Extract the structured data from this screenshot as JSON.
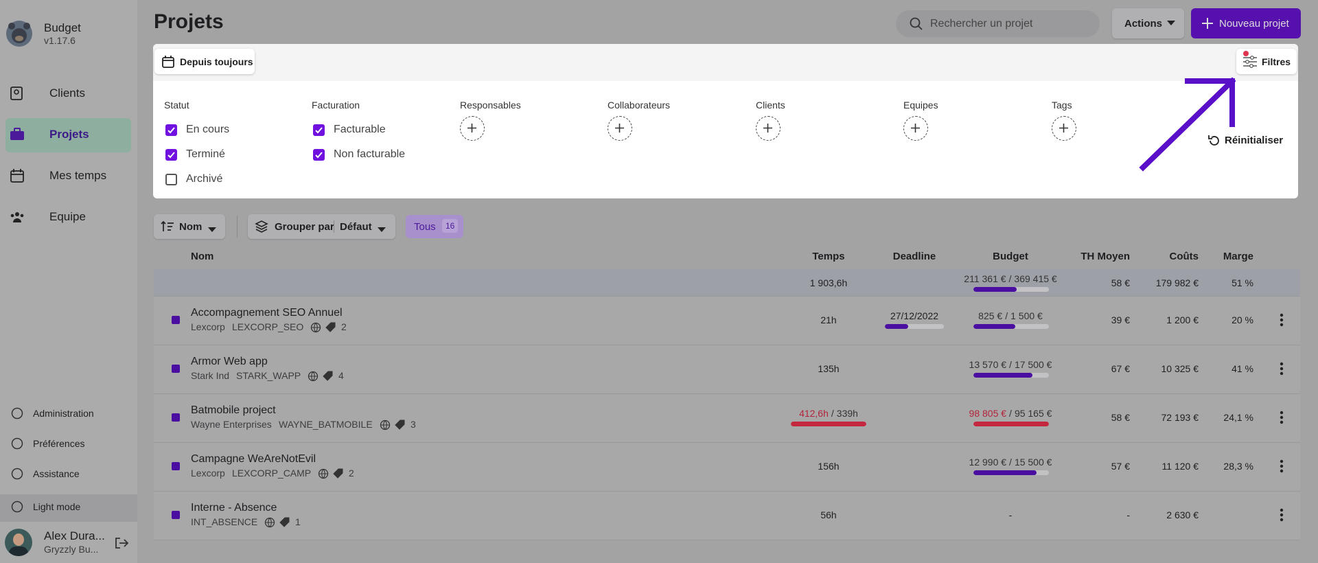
{
  "sidebar": {
    "app_name": "Budget",
    "version": "v1.17.6",
    "nav": [
      "Clients",
      "Projets",
      "Mes temps",
      "Equipe"
    ],
    "bottom": [
      "Administration",
      "Préférences",
      "Assistance",
      "Light mode"
    ],
    "user": {
      "name": "Alex Dura...",
      "org": "Gryzzly Bu..."
    }
  },
  "header": {
    "title": "Projets",
    "search_placeholder": "Rechercher un projet",
    "actions": "Actions",
    "new_button": "Nouveau projet"
  },
  "filters": {
    "period": "Depuis toujours",
    "button": "Filtres",
    "reset": "Réinitialiser",
    "groups": [
      {
        "title": "Statut",
        "options": [
          {
            "label": "En cours",
            "checked": true
          },
          {
            "label": "Terminé",
            "checked": true
          },
          {
            "label": "Archivé",
            "checked": false
          }
        ]
      },
      {
        "title": "Facturation",
        "options": [
          {
            "label": "Facturable",
            "checked": true
          },
          {
            "label": "Non facturable",
            "checked": true
          }
        ]
      },
      {
        "title": "Responsables"
      },
      {
        "title": "Collaborateurs"
      },
      {
        "title": "Clients"
      },
      {
        "title": "Equipes"
      },
      {
        "title": "Tags"
      }
    ]
  },
  "toolbar": {
    "sort": "Nom",
    "group_label": "Grouper par",
    "group_value": "Défaut",
    "tab": "Tous",
    "count": 16
  },
  "table": {
    "columns": [
      "Nom",
      "Temps",
      "Deadline",
      "Budget",
      "TH Moyen",
      "Coûts",
      "Marge"
    ],
    "separator": "/",
    "totals": {
      "temps": "1 903,6h",
      "budget_spent": "211 361 €",
      "budget_total": "369 415 €",
      "th": "58 €",
      "couts": "179 982 €",
      "marge": "51 %"
    },
    "rows": [
      {
        "name": "Accompagnement SEO Annuel",
        "client": "Lexcorp",
        "code": "LEXCORP_SEO",
        "tags": 2,
        "temps": "21h",
        "deadline": "27/12/2022",
        "budget_spent": "825 €",
        "budget_total": "1 500 €",
        "th": "39 €",
        "couts": "1 200 €",
        "marge": "20 %",
        "over": false
      },
      {
        "name": "Armor Web app",
        "client": "Stark Ind",
        "code": "STARK_WAPP",
        "tags": 4,
        "temps": "135h",
        "budget_spent": "13 570 €",
        "budget_total": "17 500 €",
        "th": "67 €",
        "couts": "10 325 €",
        "marge": "41 %",
        "over": false
      },
      {
        "name": "Batmobile project",
        "client": "Wayne Enterprises",
        "code": "WAYNE_BATMOBILE",
        "tags": 3,
        "temps": "412,6h",
        "temps_budget": "339h",
        "budget_spent": "98 805 €",
        "budget_total": "95 165 €",
        "th": "58 €",
        "couts": "72 193 €",
        "marge": "24,1 %",
        "over": true
      },
      {
        "name": "Campagne WeAreNotEvil",
        "client": "Lexcorp",
        "code": "LEXCORP_CAMP",
        "tags": 2,
        "temps": "156h",
        "budget_spent": "12 990 €",
        "budget_total": "15 500 €",
        "th": "57 €",
        "couts": "11 120 €",
        "marge": "28,3 %",
        "over": false
      },
      {
        "name": "Interne - Absence",
        "code": "INT_ABSENCE",
        "tags": 1,
        "temps": "56h",
        "budget_spent": "-",
        "th": "-",
        "couts": "2 630 €",
        "over": false
      }
    ]
  }
}
